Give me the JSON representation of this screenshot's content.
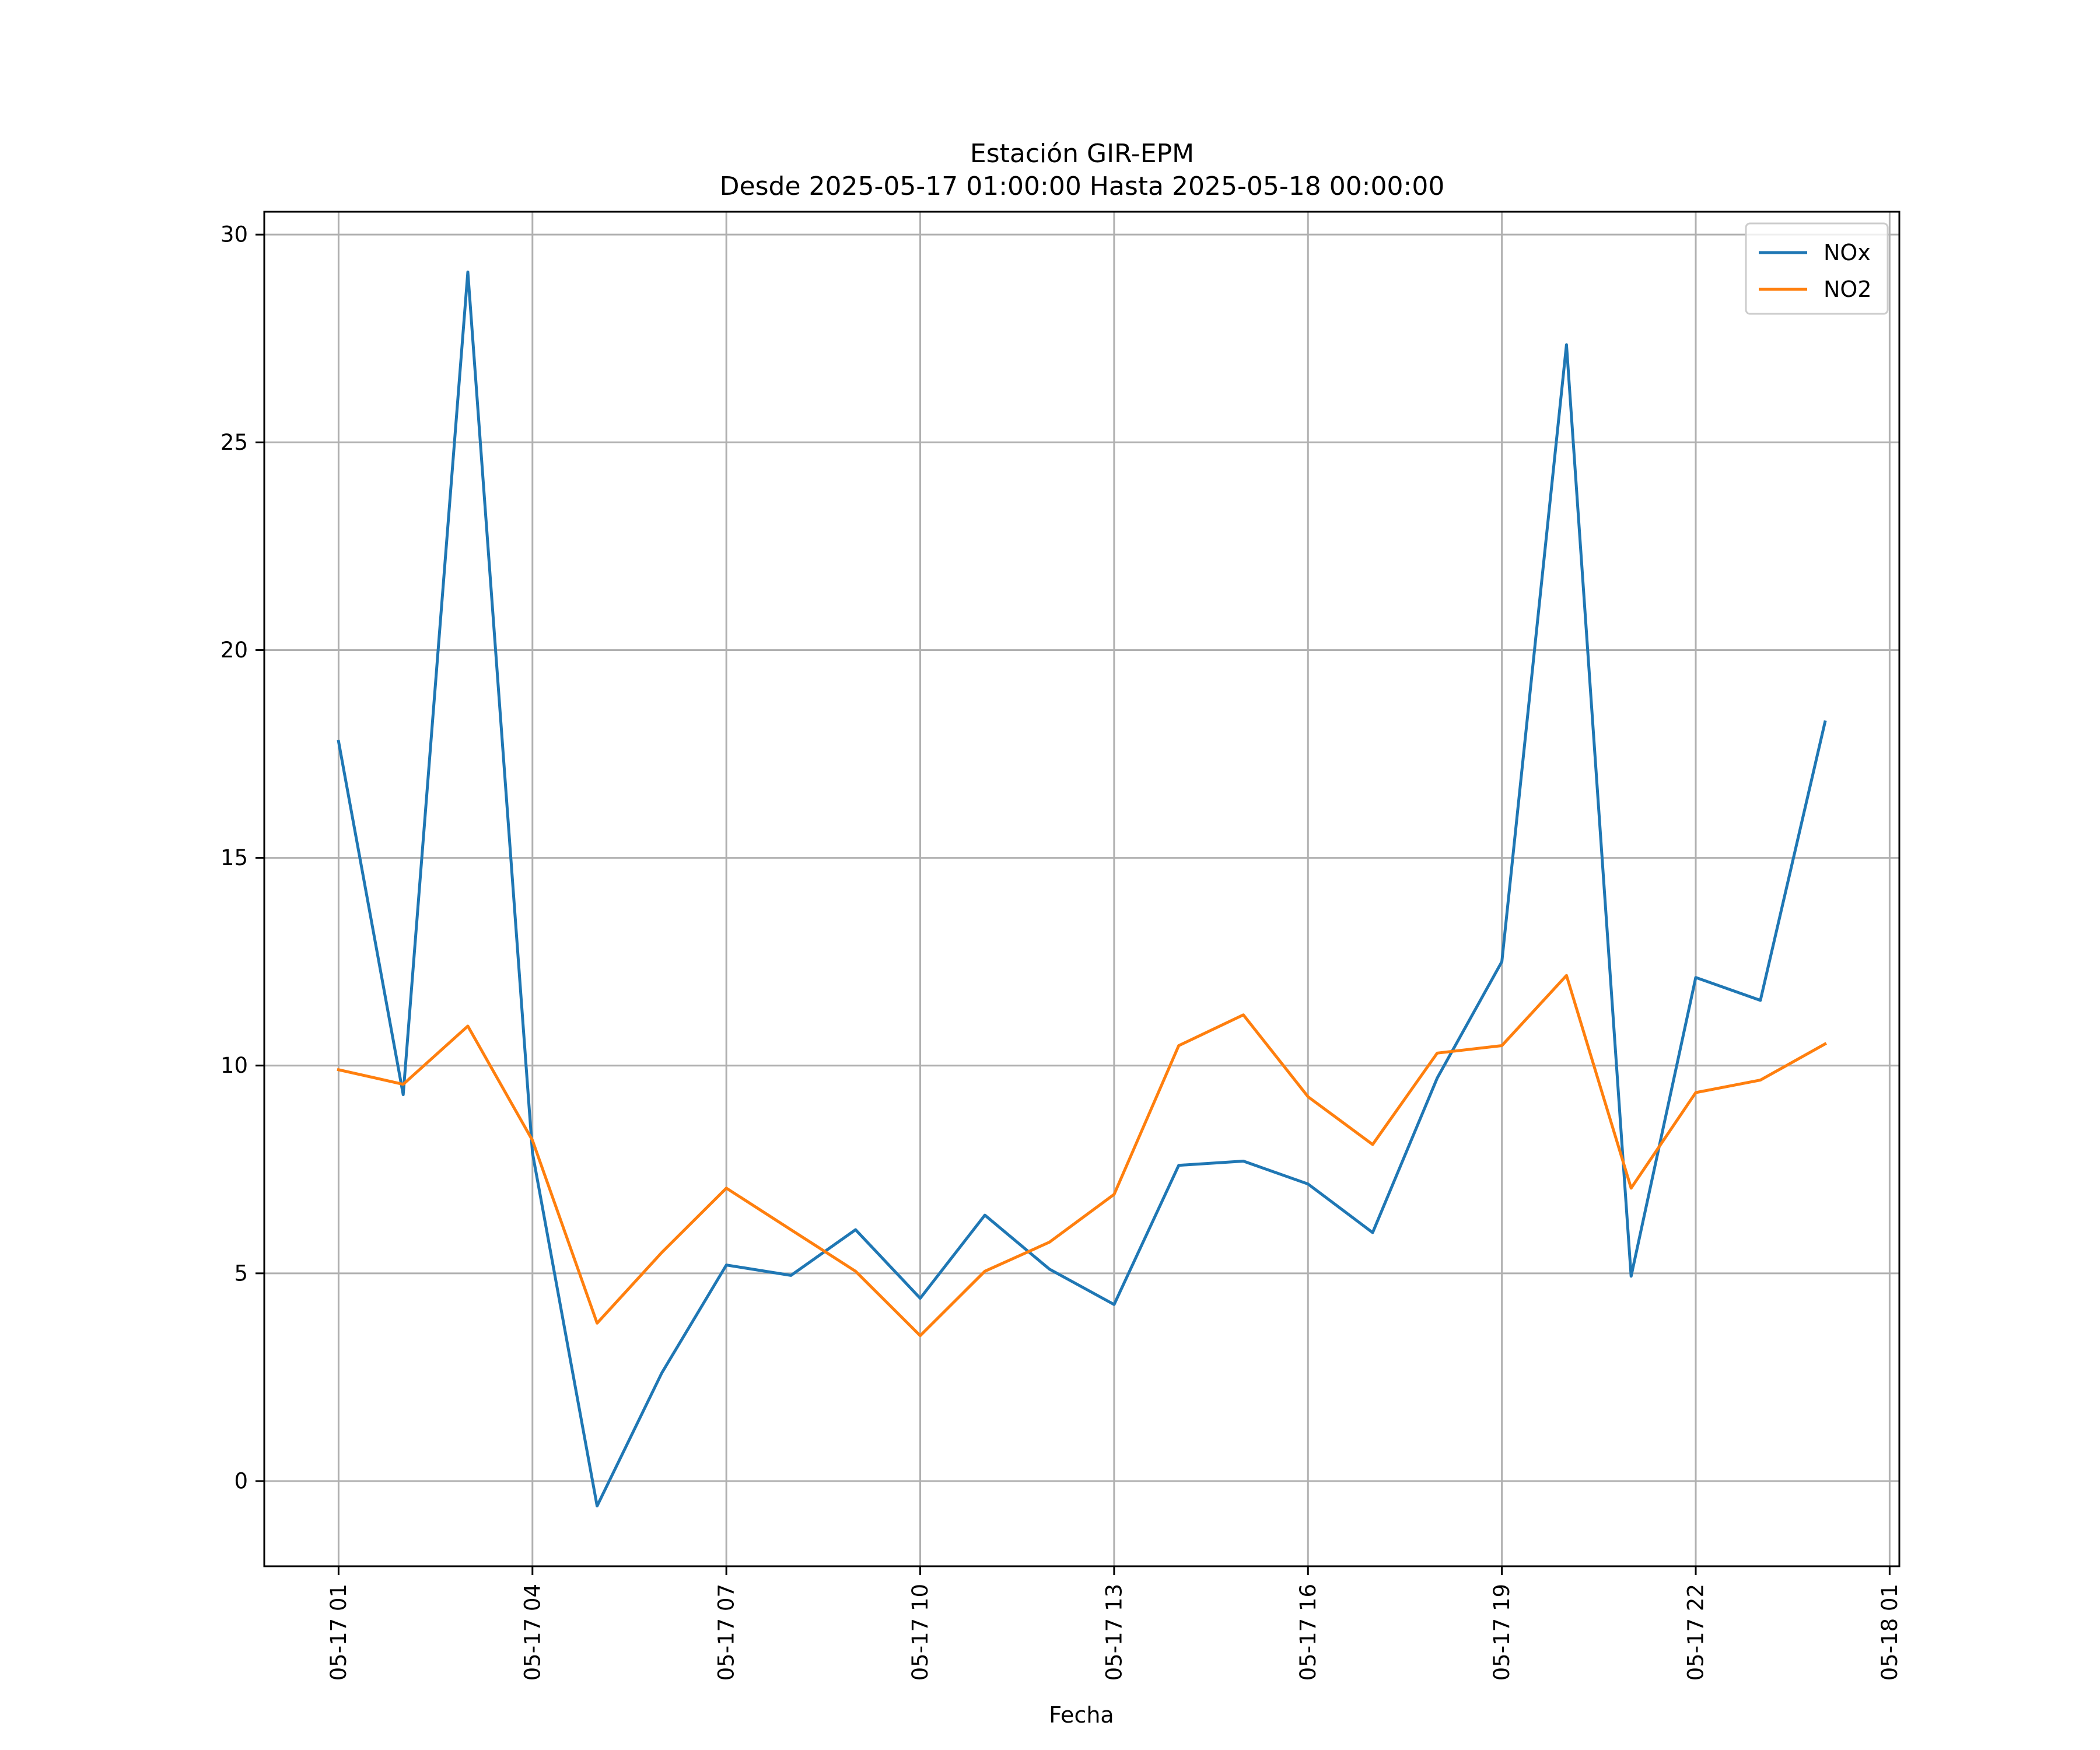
{
  "chart_data": {
    "type": "line",
    "title": "Estación GIR-EPM",
    "subtitle": "Desde 2025-05-17 01:00:00 Hasta 2025-05-18 00:00:00",
    "xlabel": "Fecha",
    "ylabel": "",
    "x": [
      "2025-05-17 01:00",
      "2025-05-17 02:00",
      "2025-05-17 03:00",
      "2025-05-17 04:00",
      "2025-05-17 05:00",
      "2025-05-17 06:00",
      "2025-05-17 07:00",
      "2025-05-17 08:00",
      "2025-05-17 09:00",
      "2025-05-17 10:00",
      "2025-05-17 11:00",
      "2025-05-17 12:00",
      "2025-05-17 13:00",
      "2025-05-17 14:00",
      "2025-05-17 15:00",
      "2025-05-17 16:00",
      "2025-05-17 17:00",
      "2025-05-17 18:00",
      "2025-05-17 19:00",
      "2025-05-17 20:00",
      "2025-05-17 21:00",
      "2025-05-17 22:00",
      "2025-05-17 23:00",
      "2025-05-18 00:00"
    ],
    "series": [
      {
        "name": "NOx",
        "color": "#1f77b4",
        "values": [
          17.8,
          9.3,
          29.1,
          7.9,
          -0.6,
          2.6,
          5.2,
          4.95,
          6.05,
          4.4,
          6.4,
          5.1,
          4.25,
          7.6,
          7.7,
          7.15,
          5.98,
          9.7,
          12.5,
          27.35,
          4.93,
          12.12,
          11.57,
          18.27
        ]
      },
      {
        "name": "NO2",
        "color": "#ff7f0e",
        "values": [
          9.9,
          9.55,
          10.95,
          8.2,
          3.8,
          5.5,
          7.05,
          6.05,
          5.05,
          3.5,
          5.05,
          5.75,
          6.9,
          10.48,
          11.22,
          9.25,
          8.1,
          10.3,
          10.48,
          12.17,
          7.05,
          9.35,
          9.65,
          10.52
        ]
      }
    ],
    "xticks": [
      "2025-05-17 01:00",
      "2025-05-17 04:00",
      "2025-05-17 07:00",
      "2025-05-17 10:00",
      "2025-05-17 13:00",
      "2025-05-17 16:00",
      "2025-05-17 19:00",
      "2025-05-17 22:00",
      "2025-05-18 01:00"
    ],
    "xtick_labels": [
      "05-17 01",
      "05-17 04",
      "05-17 07",
      "05-17 10",
      "05-17 13",
      "05-17 16",
      "05-17 19",
      "05-17 22",
      "05-18 01"
    ],
    "xlim": [
      "2025-05-16 23:51",
      "2025-05-18 01:09"
    ],
    "yticks": [
      0,
      5,
      10,
      15,
      20,
      25,
      30
    ],
    "ylim": [
      -2.05,
      30.55
    ],
    "grid": true,
    "legend_position": "top-right",
    "axis_color": "#000000",
    "grid_color": "#b0b0b0"
  }
}
